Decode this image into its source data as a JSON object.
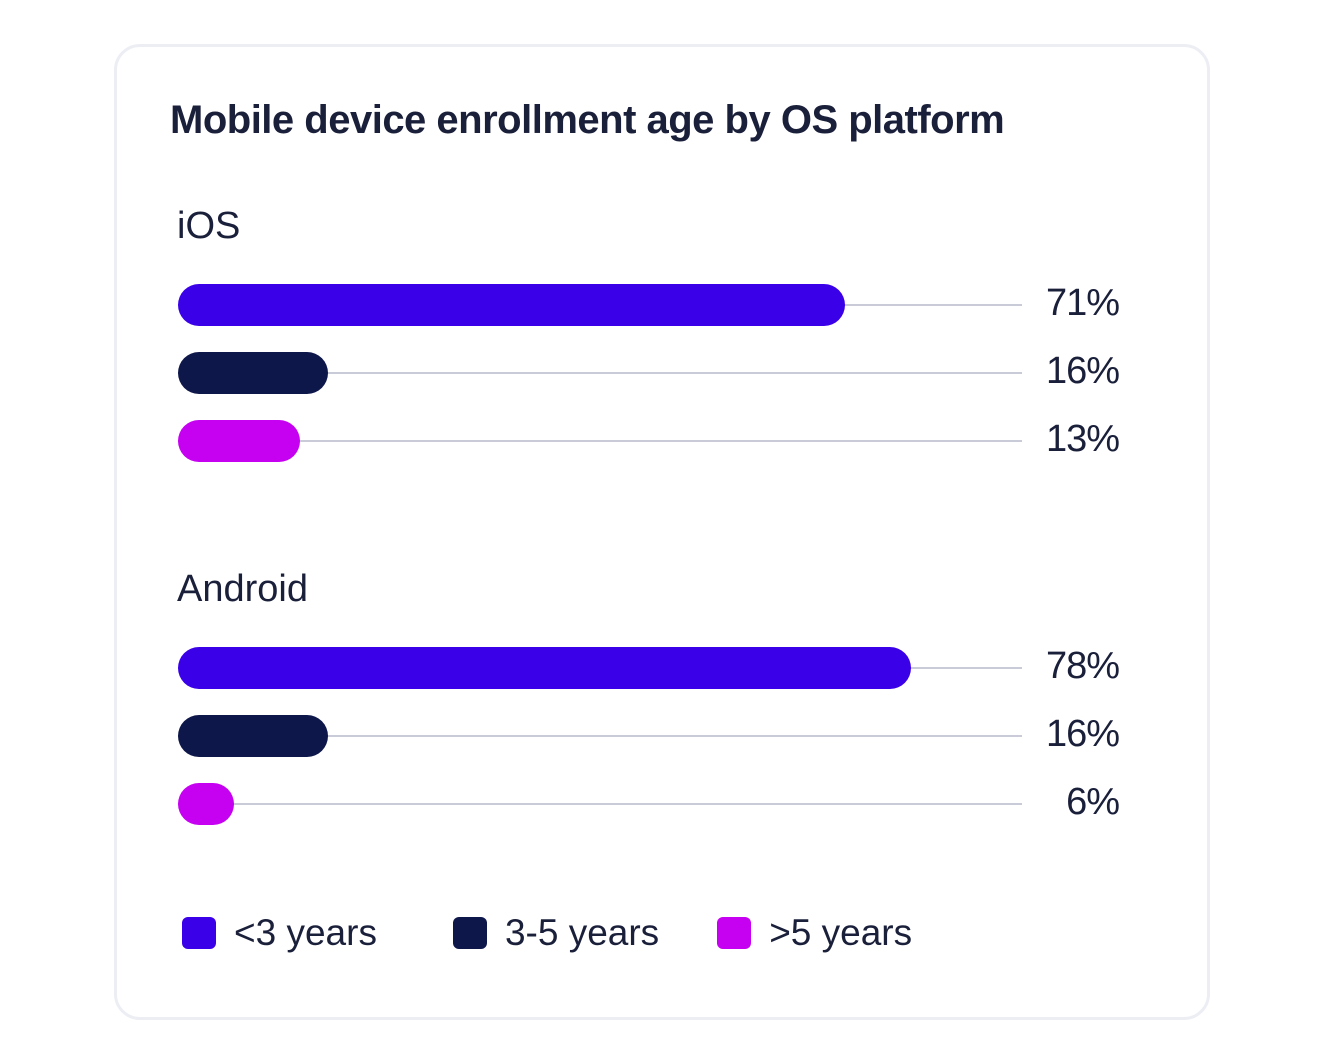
{
  "chart_data": {
    "type": "bar",
    "orientation": "horizontal",
    "title": "Mobile device enrollment age by OS platform",
    "xlim": [
      0,
      100
    ],
    "groups": [
      {
        "name": "iOS",
        "items": [
          {
            "series": "<3 years",
            "value": 71,
            "label": "71%"
          },
          {
            "series": "3-5 years",
            "value": 16,
            "label": "16%"
          },
          {
            "series": ">5 years",
            "value": 13,
            "label": "13%"
          }
        ]
      },
      {
        "name": "Android",
        "items": [
          {
            "series": "<3 years",
            "value": 78,
            "label": "78%"
          },
          {
            "series": "3-5 years",
            "value": 16,
            "label": "16%"
          },
          {
            "series": ">5 years",
            "value": 6,
            "label": "6%"
          }
        ]
      }
    ],
    "legend": {
      "position": "bottom-left",
      "entries": [
        {
          "label": "<3 years",
          "color": "#3a00e8"
        },
        {
          "label": "3-5 years",
          "color": "#0e174a"
        },
        {
          "label": ">5 years",
          "color": "#c600f0"
        }
      ]
    },
    "grid": false
  }
}
